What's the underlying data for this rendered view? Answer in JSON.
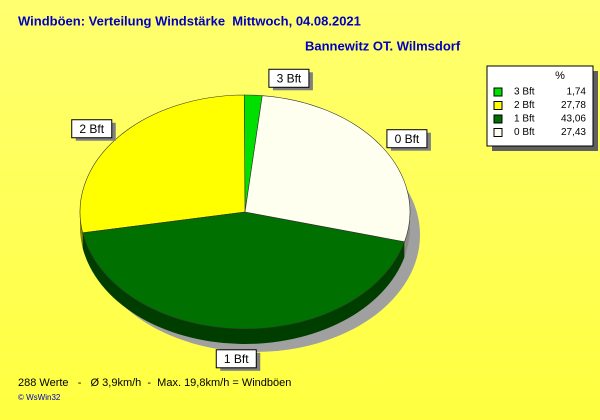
{
  "chart_data": {
    "type": "pie",
    "title": "Windböen: Verteilung Windstärke  Mittwoch, 04.08.2021",
    "subtitle": "Bannewitz OT. Wilmsdorf",
    "categories": [
      "3 Bft",
      "2 Bft",
      "1 Bft",
      "0 Bft"
    ],
    "values": [
      1.74,
      27.78,
      43.06,
      27.43
    ],
    "value_labels": [
      "1,74",
      "27,78",
      "43,06",
      "27,43"
    ],
    "colors": [
      "#00e000",
      "#ffff00",
      "#007000",
      "#fffff0"
    ],
    "legend_title": "%",
    "legend": "top-right",
    "footer": "288 Werte   -   Ø 3,9km/h  -  Max. 19,8km/h = Windböen",
    "credit": "© WsWin32"
  }
}
